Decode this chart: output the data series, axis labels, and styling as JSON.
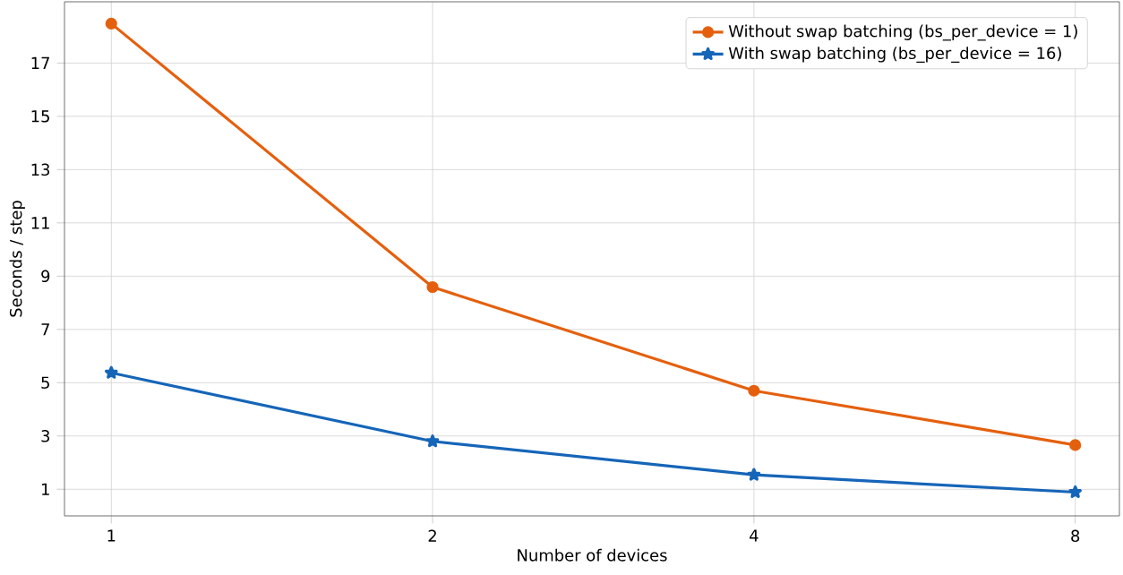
{
  "chart_data": {
    "type": "line",
    "xlabel": "Number of devices",
    "ylabel": "Seconds / step",
    "x": [
      1,
      2,
      4,
      8
    ],
    "series": [
      {
        "name": "Without swap batching (bs_per_device = 1)",
        "color": "#e4600e",
        "marker": "circle",
        "values": [
          18.48,
          8.59,
          4.7,
          2.66
        ]
      },
      {
        "name": "With swap batching (bs_per_device = 16)",
        "color": "#1565b8",
        "marker": "star",
        "values": [
          5.37,
          2.8,
          1.54,
          0.89
        ]
      }
    ],
    "log": "x",
    "xlim": [
      0.904,
      8.8
    ],
    "ylim": [
      0,
      19.3
    ],
    "xticks": [
      1,
      2,
      4,
      8
    ],
    "yticks": [
      1,
      3,
      5,
      7,
      9,
      11,
      13,
      15,
      17
    ],
    "grid": true,
    "legend": "top right",
    "line_style": "solid"
  }
}
